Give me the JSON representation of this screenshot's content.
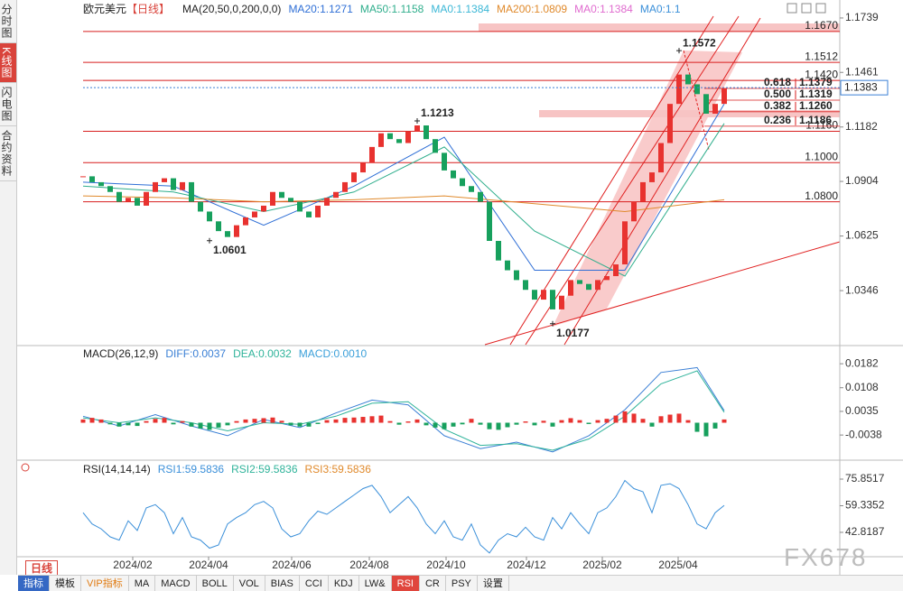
{
  "sidebar": {
    "tabs": [
      "分时图",
      "K线图",
      "闪电图",
      "合约资料"
    ]
  },
  "chart_data": [
    {
      "type": "candlestick",
      "title": "欧元美元",
      "period": "【日线】",
      "indicator": "MA(20,50,0,200,0,0)",
      "up_color": "#e8322f",
      "down_color": "#17a05d",
      "x": [
        0,
        1,
        2,
        3,
        4,
        5,
        6,
        7,
        8,
        9,
        10,
        11,
        12,
        13,
        14,
        15,
        16,
        17,
        18,
        19,
        20,
        21,
        22,
        23,
        24,
        25,
        26,
        27,
        28,
        29,
        30,
        31,
        32,
        33,
        34,
        35,
        36,
        37,
        38,
        39,
        40,
        41,
        42,
        43,
        44,
        45,
        46,
        47,
        48,
        49,
        50,
        51,
        52,
        53,
        54,
        55,
        56,
        57,
        58,
        59,
        60,
        61,
        62,
        63,
        64,
        65,
        66,
        67,
        68,
        69,
        70,
        71
      ],
      "values": [
        1.093,
        1.09,
        1.088,
        1.085,
        1.08,
        1.082,
        1.078,
        1.085,
        1.09,
        1.092,
        1.086,
        1.09,
        1.08,
        1.075,
        1.07,
        1.065,
        1.062,
        1.068,
        1.072,
        1.075,
        1.078,
        1.085,
        1.082,
        1.08,
        1.075,
        1.072,
        1.078,
        1.082,
        1.085,
        1.09,
        1.095,
        1.1,
        1.108,
        1.115,
        1.112,
        1.11,
        1.116,
        1.119,
        1.112,
        1.105,
        1.096,
        1.092,
        1.088,
        1.085,
        1.08,
        1.06,
        1.05,
        1.045,
        1.04,
        1.035,
        1.03,
        1.035,
        1.025,
        1.032,
        1.04,
        1.038,
        1.035,
        1.04,
        1.042,
        1.048,
        1.07,
        1.08,
        1.09,
        1.095,
        1.11,
        1.13,
        1.145,
        1.14,
        1.135,
        1.125,
        1.13,
        1.138
      ],
      "series": [
        {
          "name": "MA20:1.1271",
          "color": "#2f6fd6",
          "x": [
            0,
            10,
            20,
            30,
            40,
            50,
            60,
            71
          ],
          "values": [
            1.09,
            1.088,
            1.068,
            1.088,
            1.113,
            1.045,
            1.045,
            1.13
          ]
        },
        {
          "name": "MA50:1.1158",
          "color": "#2fae8c",
          "x": [
            0,
            10,
            20,
            30,
            40,
            50,
            60,
            71
          ],
          "values": [
            1.088,
            1.085,
            1.075,
            1.085,
            1.108,
            1.065,
            1.042,
            1.12
          ]
        },
        {
          "name": "MA0:1.1384",
          "color": "#3bb7d6"
        },
        {
          "name": "MA200:1.0809",
          "color": "#e08a2c",
          "x": [
            0,
            10,
            20,
            30,
            40,
            50,
            60,
            71
          ],
          "values": [
            1.083,
            1.082,
            1.08,
            1.081,
            1.083,
            1.079,
            1.075,
            1.081
          ]
        },
        {
          "name": "MA0:1.1384",
          "color": "#e06ccf"
        },
        {
          "name": "MA0:1.1",
          "color": "#3a8fd9"
        }
      ],
      "xlim": [
        -7.2,
        83.8
      ],
      "xticks": [
        {
          "value": 5.5,
          "label": "2024/02"
        },
        {
          "value": 13.9,
          "label": "2024/04"
        },
        {
          "value": 23.1,
          "label": "2024/06"
        },
        {
          "value": 31.7,
          "label": "2024/08"
        },
        {
          "value": 40.2,
          "label": "2024/10"
        },
        {
          "value": 49.1,
          "label": "2024/12"
        },
        {
          "value": 57.5,
          "label": "2025/02"
        },
        {
          "value": 65.9,
          "label": "2025/04"
        }
      ],
      "ylim": [
        1.0079,
        1.1794
      ],
      "yticks": [
        1.1739,
        1.1461,
        1.1182,
        1.0904,
        1.0625,
        1.0346
      ],
      "level_color": "#d81e1e",
      "levels": [
        {
          "value": 1.167,
          "label": "1.1670"
        },
        1.1512,
        {
          "value": 1.142,
          "label": "1.1420"
        },
        {
          "value": 1.116,
          "label": "1.1160"
        },
        {
          "value": 1.1,
          "label": "1.1000"
        },
        {
          "value": 1.08,
          "label": "1.0800"
        }
      ],
      "fib": [
        {
          "ratio": "0.618",
          "level": 1.1379
        },
        {
          "ratio": "0.500",
          "level": 1.1319
        },
        {
          "ratio": "0.382",
          "level": {
            "value": 1.126,
            "label": "1.1260"
          }
        },
        {
          "ratio": "0.236",
          "level": 1.1186
        }
      ],
      "annotations": [
        {
          "x": 37,
          "value": 1.1213,
          "color": "#d81e1e"
        },
        {
          "x": 14,
          "value": 1.0601,
          "color": "#1f9a4f"
        },
        {
          "x": 52,
          "value": 1.0177,
          "color": "#5a8f6c"
        },
        {
          "x": 66,
          "value": 1.1572,
          "color": "#d81e1e"
        }
      ],
      "last_price": 1.1383
    },
    {
      "type": "macd",
      "title": "MACD(26,12,9)",
      "up_color": "#e8322f",
      "down_color": "#17a05d",
      "x": [
        0,
        1,
        2,
        3,
        4,
        5,
        6,
        7,
        8,
        9,
        10,
        11,
        12,
        13,
        14,
        15,
        16,
        17,
        18,
        19,
        20,
        21,
        22,
        23,
        24,
        25,
        26,
        27,
        28,
        29,
        30,
        31,
        32,
        33,
        34,
        35,
        36,
        37,
        38,
        39,
        40,
        41,
        42,
        43,
        44,
        45,
        46,
        47,
        48,
        49,
        50,
        51,
        52,
        53,
        54,
        55,
        56,
        57,
        58,
        59,
        60,
        61,
        62,
        63,
        64,
        65,
        66,
        67,
        68,
        69,
        70,
        71
      ],
      "series": [
        {
          "name": "DIFF:0.0037",
          "color": "#3a7fd5",
          "x": [
            0,
            4,
            8,
            12,
            16,
            20,
            24,
            28,
            32,
            36,
            40,
            44,
            48,
            52,
            56,
            60,
            64,
            68,
            71
          ],
          "values": [
            0.002,
            -0.001,
            0.0025,
            -0.001,
            -0.004,
            0.001,
            -0.0015,
            0.003,
            0.007,
            0.0055,
            -0.004,
            -0.008,
            -0.006,
            -0.009,
            -0.004,
            0.004,
            0.0155,
            0.017,
            0.0037
          ]
        },
        {
          "name": "DEA:0.0032",
          "color": "#2fb39a",
          "x": [
            0,
            4,
            8,
            12,
            16,
            20,
            24,
            28,
            32,
            36,
            40,
            44,
            48,
            52,
            56,
            60,
            64,
            68,
            71
          ],
          "values": [
            0.0015,
            0.0,
            0.0015,
            0.0,
            -0.0025,
            0.0,
            -0.0005,
            0.002,
            0.006,
            0.0065,
            -0.002,
            -0.007,
            -0.0065,
            -0.0085,
            -0.005,
            0.002,
            0.012,
            0.016,
            0.0032
          ]
        },
        {
          "name": "MACD:0.0010",
          "color": "#3a9fd9",
          "values": [
            0.001,
            0.0015,
            0.001,
            -0.0005,
            -0.0012,
            -0.0008,
            -0.001,
            0.0005,
            0.0012,
            0.0015,
            -0.0005,
            0.0005,
            -0.0012,
            -0.0018,
            -0.0022,
            -0.0015,
            -0.0008,
            0.0005,
            0.001,
            0.0012,
            0.0014,
            0.0016,
            0.0006,
            -0.0008,
            -0.0012,
            -0.0012,
            -0.0004,
            0.0008,
            0.001,
            0.0015,
            0.0016,
            0.0018,
            0.002,
            0.0022,
            0.0005,
            -0.0006,
            0.0004,
            0.001,
            -0.0008,
            -0.0015,
            -0.002,
            -0.0012,
            -0.0005,
            0.0012,
            -0.0006,
            -0.002,
            -0.0022,
            -0.0014,
            -0.0006,
            0.0004,
            -0.0008,
            0.0006,
            -0.0012,
            0.0008,
            0.0014,
            0.0008,
            -0.0004,
            0.0008,
            0.0012,
            0.0022,
            0.0035,
            0.0028,
            0.0012,
            -0.0012,
            0.002,
            0.0025,
            0.0028,
            0.0008,
            -0.0028,
            -0.0042,
            -0.0018,
            0.001
          ]
        }
      ],
      "xlim": [
        -7.2,
        83.8
      ],
      "ylim": [
        -0.011,
        0.0213
      ],
      "yticks": [
        0.0182,
        0.0108,
        0.0035,
        -0.0038
      ]
    },
    {
      "type": "line",
      "title": "RSI(14,14,14)",
      "x": [
        0,
        1,
        2,
        3,
        4,
        5,
        6,
        7,
        8,
        9,
        10,
        11,
        12,
        13,
        14,
        15,
        16,
        17,
        18,
        19,
        20,
        21,
        22,
        23,
        24,
        25,
        26,
        27,
        28,
        29,
        30,
        31,
        32,
        33,
        34,
        35,
        36,
        37,
        38,
        39,
        40,
        41,
        42,
        43,
        44,
        45,
        46,
        47,
        48,
        49,
        50,
        51,
        52,
        53,
        54,
        55,
        56,
        57,
        58,
        59,
        60,
        61,
        62,
        63,
        64,
        65,
        66,
        67,
        68,
        69,
        70,
        71
      ],
      "series": [
        {
          "name": "RSI1:59.5836",
          "color": "#3a8fd9",
          "values": [
            55,
            48,
            45,
            40,
            38,
            50,
            44,
            58,
            60,
            55,
            42,
            52,
            40,
            38,
            33,
            35,
            48,
            52,
            55,
            60,
            62,
            58,
            45,
            40,
            42,
            50,
            56,
            54,
            58,
            62,
            66,
            70,
            72,
            65,
            55,
            60,
            65,
            58,
            48,
            42,
            50,
            40,
            38,
            48,
            35,
            30,
            38,
            42,
            40,
            46,
            40,
            38,
            52,
            45,
            55,
            48,
            42,
            55,
            58,
            65,
            75,
            70,
            68,
            55,
            72,
            73,
            70,
            60,
            48,
            45,
            55,
            59.5836
          ]
        },
        {
          "name": "RSI2:59.5836",
          "color": "#2fb39a"
        },
        {
          "name": "RSI3:59.5836",
          "color": "#e08a2c"
        }
      ],
      "xlim": [
        -7.2,
        83.8
      ],
      "ylim": [
        28.82,
        82.01
      ],
      "yticks": [
        75.8517,
        59.3352,
        42.8187
      ]
    }
  ],
  "toolbar": {
    "tab": "日线",
    "items": [
      "指标",
      "模板",
      "VIP指标",
      "MA",
      "MACD",
      "BOLL",
      "VOL",
      "BIAS",
      "CCI",
      "KDJ",
      "LW&",
      "RSI",
      "CR",
      "PSY",
      "设置"
    ]
  },
  "watermark": "FX678"
}
